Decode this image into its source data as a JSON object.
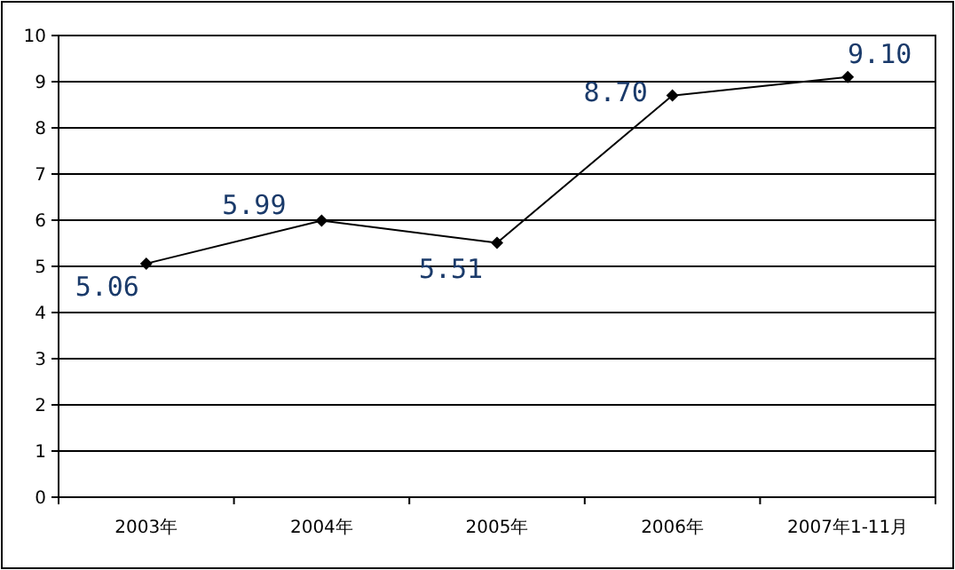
{
  "chart_data": {
    "type": "line",
    "categories": [
      "2003年",
      "2004年",
      "2005年",
      "2006年",
      "2007年1-11月"
    ],
    "values": [
      5.06,
      5.99,
      5.51,
      8.7,
      9.1
    ],
    "value_labels": [
      "5.06",
      "5.99",
      "5.51",
      "8.70",
      "9.10"
    ],
    "color": "#000000",
    "ylim": [
      0,
      10
    ],
    "yticks": [
      0,
      1,
      2,
      3,
      4,
      5,
      6,
      7,
      8,
      9,
      10
    ],
    "grid": "y",
    "marker": "diamond"
  }
}
